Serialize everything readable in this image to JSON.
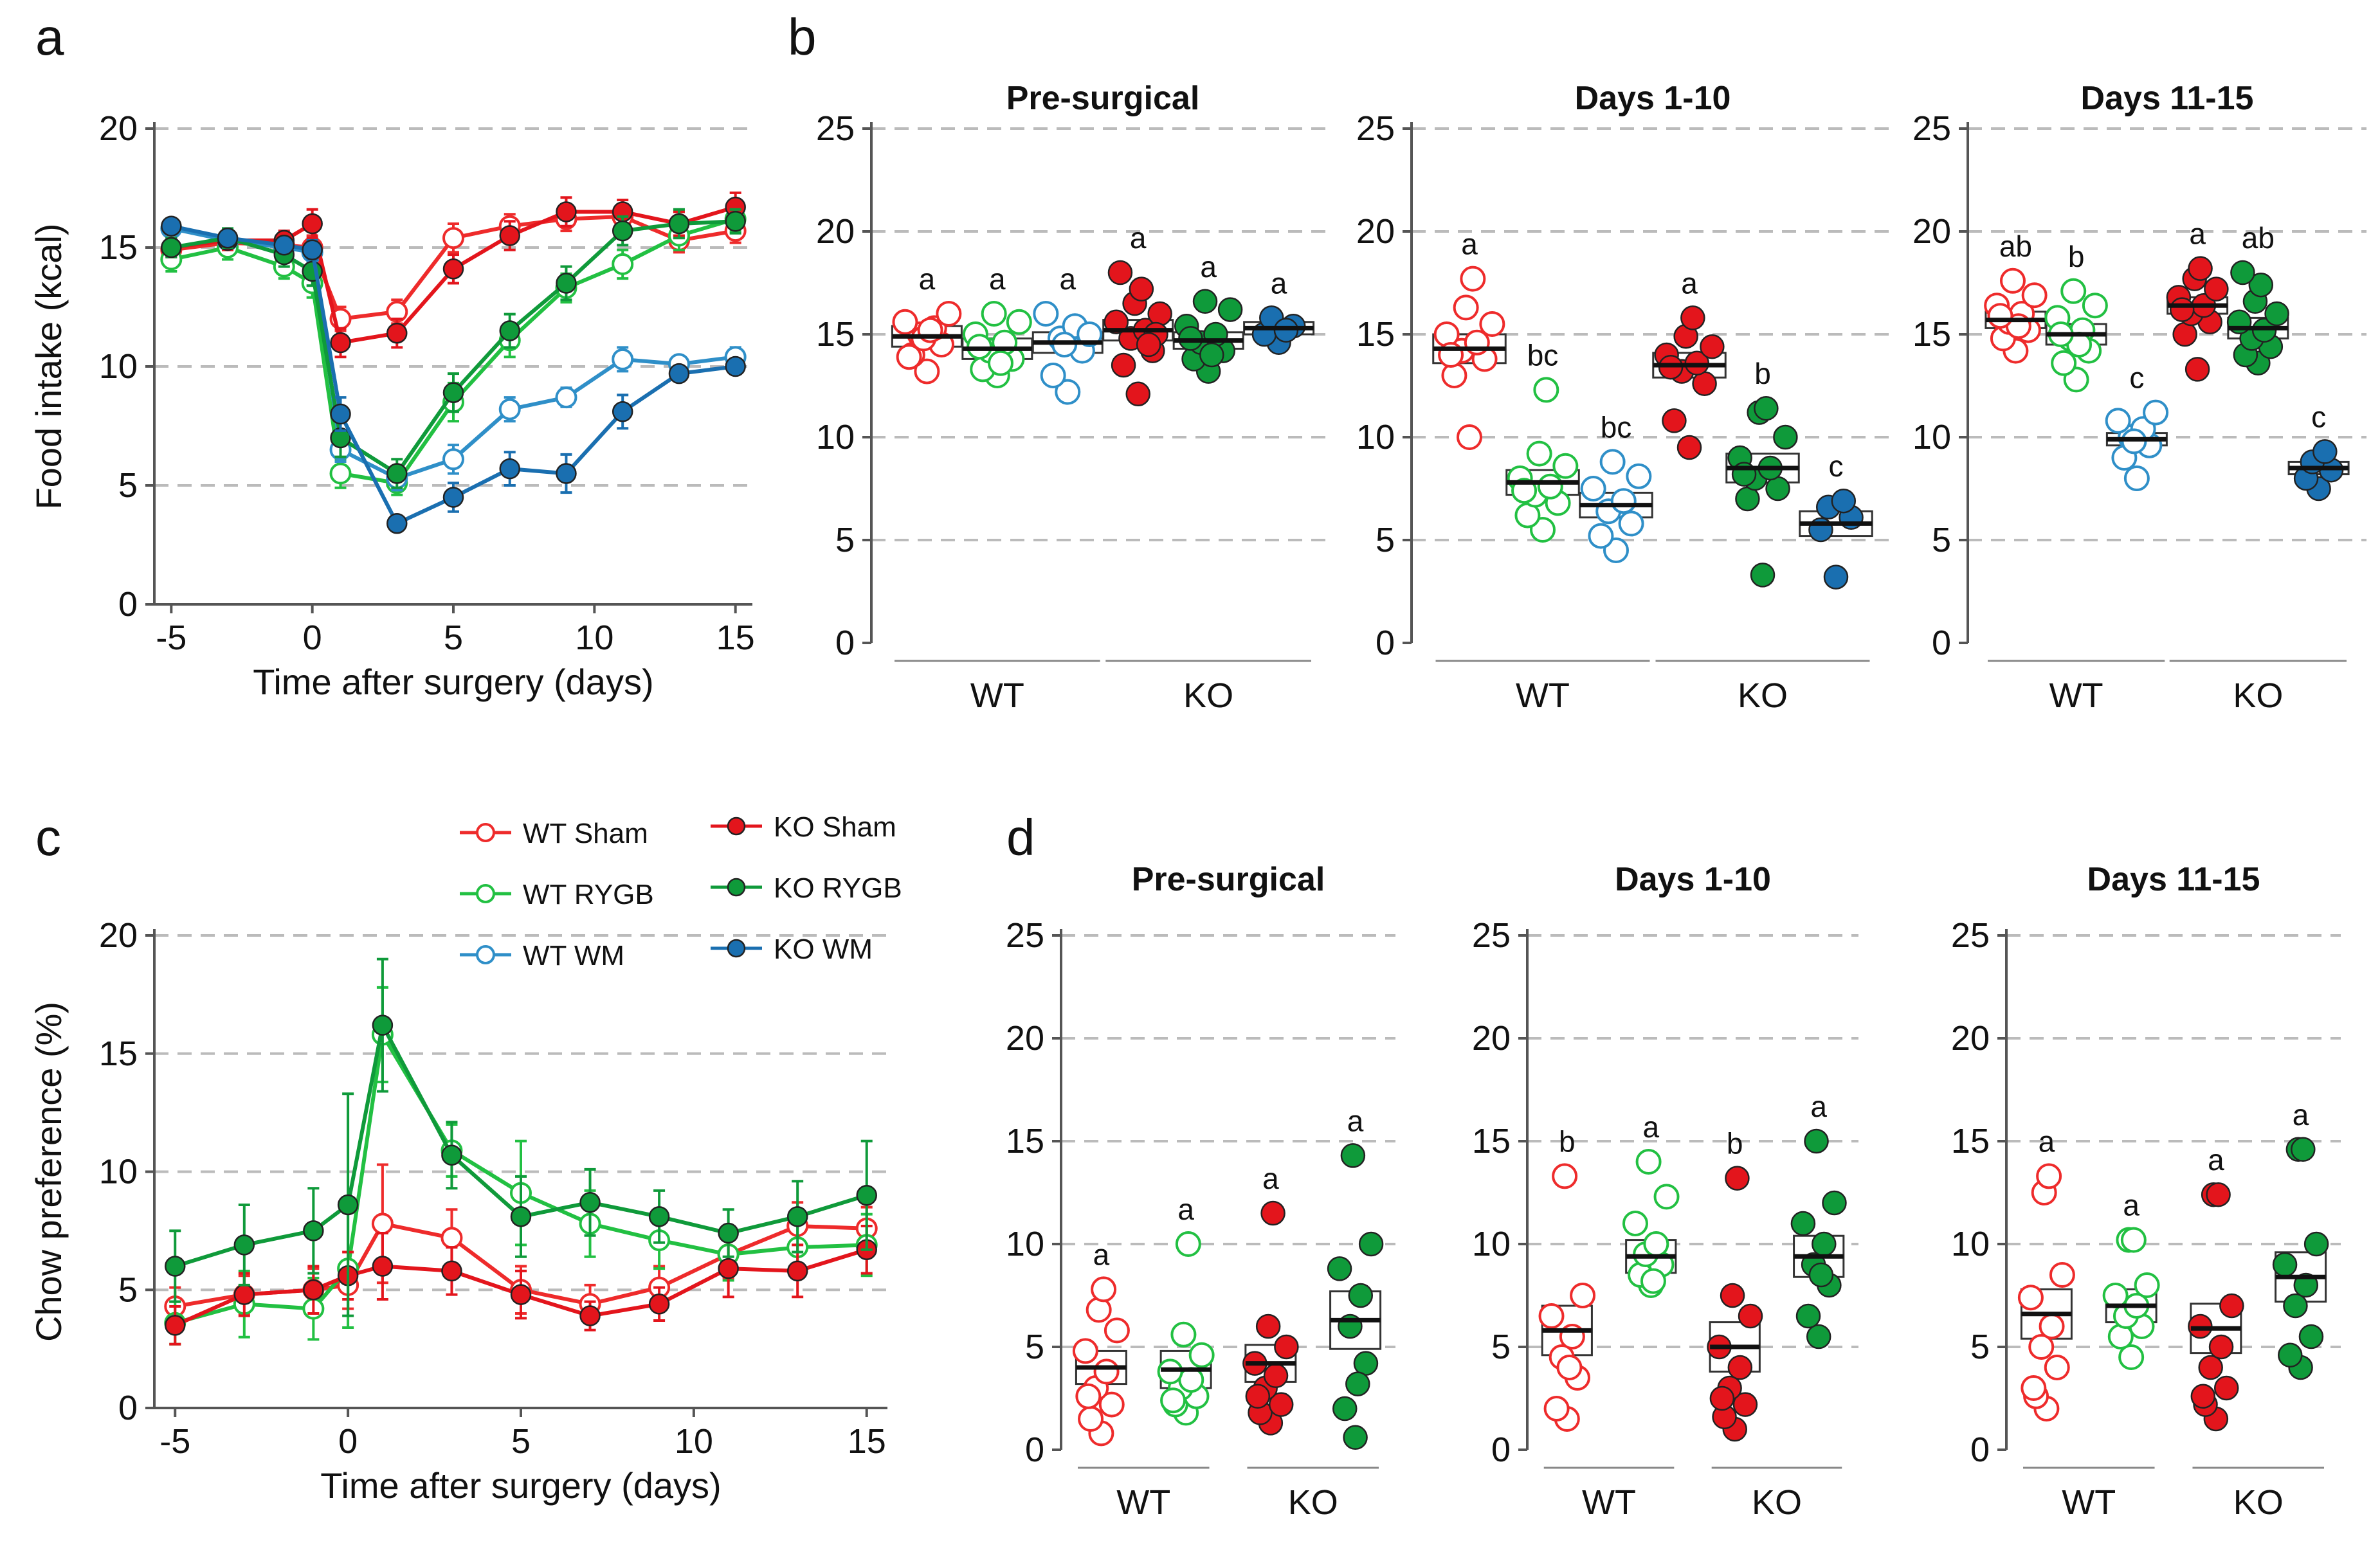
{
  "colors": {
    "wt_sham": "#ee2b2b",
    "ko_sham": "#e3151c",
    "wt_rygb": "#22c042",
    "ko_rygb": "#0f9a3a",
    "wt_wm": "#2f8fc8",
    "ko_wm": "#1a6fb0",
    "gridline": "#bbbbbb",
    "axis": "#555555"
  },
  "legend": {
    "wt_sham": "WT Sham",
    "wt_rygb": "WT RYGB",
    "wt_wm": "WT WM",
    "ko_sham": "KO Sham",
    "ko_rygb": "KO RYGB",
    "ko_wm": "KO WM"
  },
  "chart_data": [
    {
      "id": "a",
      "panel_label": "a",
      "type": "line",
      "xlabel": "Time after surgery (days)",
      "ylabel": "Food intake (kcal)",
      "xlim": [
        -5.6,
        15.6
      ],
      "ylim": [
        0,
        20
      ],
      "yticks": [
        0,
        5,
        10,
        15,
        20
      ],
      "xticks": [
        -5,
        0,
        5,
        10,
        15
      ],
      "x": [
        -5,
        -3,
        -1,
        0,
        1,
        3,
        5,
        7,
        9,
        11,
        13,
        15
      ],
      "series": [
        {
          "name": "WT Sham",
          "key": "wt_sham",
          "filled": false,
          "values": [
            14.9,
            15.2,
            15.1,
            15.0,
            12.0,
            12.3,
            15.4,
            15.9,
            16.2,
            16.3,
            15.3,
            15.7
          ],
          "err": [
            0.4,
            0.4,
            0.4,
            0.5,
            0.5,
            0.5,
            0.6,
            0.5,
            0.5,
            0.5,
            0.5,
            0.5
          ]
        },
        {
          "name": "WT RYGB",
          "key": "wt_rygb",
          "filled": false,
          "values": [
            14.5,
            15.0,
            14.2,
            13.5,
            5.5,
            5.1,
            8.5,
            11.1,
            13.3,
            14.3,
            15.5,
            16.2
          ],
          "err": [
            0.5,
            0.5,
            0.5,
            0.6,
            0.6,
            0.5,
            0.8,
            0.7,
            0.6,
            0.6,
            0.6,
            0.5
          ]
        },
        {
          "name": "WT WM",
          "key": "wt_wm",
          "filled": false,
          "values": [
            15.8,
            15.3,
            15.0,
            14.8,
            6.5,
            5.3,
            6.1,
            8.2,
            8.7,
            10.3,
            10.1,
            10.4
          ],
          "err": [
            0.3,
            0.3,
            0.3,
            0.4,
            0.5,
            0.5,
            0.6,
            0.5,
            0.4,
            0.5,
            0.3,
            0.4
          ]
        },
        {
          "name": "KO Sham",
          "key": "ko_sham",
          "filled": true,
          "values": [
            15.0,
            15.3,
            15.3,
            16.0,
            11.0,
            11.4,
            14.1,
            15.5,
            16.5,
            16.5,
            16.0,
            16.7
          ],
          "err": [
            0.4,
            0.4,
            0.4,
            0.6,
            0.6,
            0.6,
            0.6,
            0.6,
            0.6,
            0.5,
            0.5,
            0.6
          ]
        },
        {
          "name": "KO RYGB",
          "key": "ko_rygb",
          "filled": true,
          "values": [
            15.0,
            15.4,
            14.7,
            14.0,
            7.0,
            5.5,
            8.9,
            11.5,
            13.5,
            15.7,
            16.0,
            16.1
          ],
          "err": [
            0.4,
            0.4,
            0.5,
            0.6,
            0.8,
            0.6,
            0.8,
            0.7,
            0.7,
            0.6,
            0.6,
            0.5
          ]
        },
        {
          "name": "KO WM",
          "key": "ko_wm",
          "filled": true,
          "values": [
            15.9,
            15.4,
            15.1,
            14.9,
            8.0,
            3.4,
            4.5,
            5.7,
            5.5,
            8.1,
            9.7,
            10.0
          ],
          "err": [
            0.3,
            0.3,
            0.3,
            0.4,
            0.7,
            0.3,
            0.6,
            0.7,
            0.8,
            0.7,
            0.3,
            0.3
          ]
        }
      ]
    },
    {
      "id": "b1",
      "panel_label": "b",
      "type": "scatter",
      "title": "Pre-surgical",
      "ylim": [
        0,
        25
      ],
      "yticks": [
        0,
        5,
        10,
        15,
        20,
        25
      ],
      "group_labels": [
        "WT",
        "KO"
      ],
      "groups": [
        {
          "key": "wt_sham",
          "filled": false,
          "mean": 14.9,
          "sem": 0.5,
          "letter": "a",
          "values": [
            13.2,
            14.0,
            14.5,
            15.0,
            15.3,
            15.6,
            16.0,
            14.8,
            15.2,
            13.9
          ]
        },
        {
          "key": "wt_rygb",
          "filled": false,
          "mean": 14.3,
          "sem": 0.5,
          "letter": "a",
          "values": [
            13.0,
            13.3,
            13.8,
            14.2,
            14.6,
            15.0,
            15.6,
            16.0,
            13.6,
            14.4
          ]
        },
        {
          "key": "wt_wm",
          "filled": false,
          "mean": 14.6,
          "sem": 0.5,
          "letter": "a",
          "values": [
            12.2,
            13.0,
            14.2,
            14.8,
            15.4,
            16.0,
            15.0,
            14.5
          ]
        },
        {
          "key": "ko_sham",
          "filled": true,
          "mean": 15.2,
          "sem": 0.5,
          "letter": "a",
          "values": [
            12.1,
            13.5,
            14.2,
            14.8,
            15.2,
            15.6,
            16.0,
            16.5,
            17.2,
            18.0,
            15.0,
            14.5
          ]
        },
        {
          "key": "ko_rygb",
          "filled": true,
          "mean": 14.7,
          "sem": 0.4,
          "letter": "a",
          "values": [
            13.2,
            13.8,
            14.2,
            14.6,
            15.0,
            15.4,
            16.2,
            16.6,
            14.0,
            14.8
          ]
        },
        {
          "key": "ko_wm",
          "filled": true,
          "mean": 15.3,
          "sem": 0.3,
          "letter": "a",
          "values": [
            14.6,
            15.0,
            15.4,
            15.8,
            15.2
          ]
        }
      ]
    },
    {
      "id": "b2",
      "panel_label": "",
      "type": "scatter",
      "title": "Days 1-10",
      "ylim": [
        0,
        25
      ],
      "yticks": [
        0,
        5,
        10,
        15,
        20,
        25
      ],
      "group_labels": [
        "WT",
        "KO"
      ],
      "groups": [
        {
          "key": "wt_sham",
          "filled": false,
          "mean": 14.3,
          "sem": 0.7,
          "letter": "a",
          "values": [
            10.0,
            13.0,
            13.8,
            14.2,
            14.6,
            15.0,
            15.5,
            16.3,
            17.7,
            14.0
          ]
        },
        {
          "key": "wt_rygb",
          "filled": false,
          "mean": 7.8,
          "sem": 0.6,
          "letter": "bc",
          "values": [
            5.5,
            6.2,
            6.8,
            7.2,
            7.6,
            8.0,
            8.6,
            9.2,
            12.3,
            7.4
          ]
        },
        {
          "key": "wt_wm",
          "filled": false,
          "mean": 6.7,
          "sem": 0.6,
          "letter": "bc",
          "values": [
            4.5,
            5.2,
            5.8,
            6.4,
            6.9,
            7.5,
            8.1,
            8.8
          ]
        },
        {
          "key": "ko_sham",
          "filled": true,
          "mean": 13.5,
          "sem": 0.6,
          "letter": "a",
          "values": [
            9.5,
            10.8,
            12.6,
            13.2,
            13.6,
            14.0,
            14.4,
            14.9,
            15.8,
            13.4
          ]
        },
        {
          "key": "ko_rygb",
          "filled": true,
          "mean": 8.5,
          "sem": 0.7,
          "letter": "b",
          "values": [
            3.3,
            7.0,
            7.5,
            8.0,
            8.5,
            9.0,
            10.0,
            11.2,
            11.4,
            8.2
          ]
        },
        {
          "key": "ko_wm",
          "filled": true,
          "mean": 5.8,
          "sem": 0.6,
          "letter": "c",
          "values": [
            3.2,
            5.5,
            6.1,
            6.6,
            6.9
          ]
        }
      ]
    },
    {
      "id": "b3",
      "panel_label": "",
      "type": "scatter",
      "title": "Days 11-15",
      "ylim": [
        0,
        25
      ],
      "yticks": [
        0,
        5,
        10,
        15,
        20,
        25
      ],
      "group_labels": [
        "WT",
        "KO"
      ],
      "groups": [
        {
          "key": "wt_sham",
          "filled": false,
          "mean": 15.7,
          "sem": 0.4,
          "letter": "ab",
          "values": [
            14.2,
            14.8,
            15.2,
            15.6,
            16.0,
            16.4,
            16.9,
            17.6,
            15.4,
            15.9
          ]
        },
        {
          "key": "wt_rygb",
          "filled": false,
          "mean": 15.0,
          "sem": 0.5,
          "letter": "b",
          "values": [
            12.8,
            13.6,
            14.2,
            14.8,
            15.2,
            15.8,
            16.4,
            17.1,
            14.5,
            15.0
          ]
        },
        {
          "key": "wt_wm",
          "filled": false,
          "mean": 9.9,
          "sem": 0.3,
          "letter": "c",
          "values": [
            8.0,
            9.0,
            9.6,
            10.0,
            10.4,
            10.8,
            11.2,
            9.8
          ]
        },
        {
          "key": "ko_sham",
          "filled": true,
          "mean": 16.4,
          "sem": 0.4,
          "letter": "a",
          "values": [
            13.3,
            15.0,
            15.6,
            16.0,
            16.4,
            16.8,
            17.2,
            17.7,
            18.2,
            16.2
          ]
        },
        {
          "key": "ko_rygb",
          "filled": true,
          "mean": 15.3,
          "sem": 0.5,
          "letter": "ab",
          "values": [
            13.6,
            14.0,
            14.4,
            14.8,
            15.2,
            15.6,
            16.0,
            16.6,
            17.4,
            18.0
          ]
        },
        {
          "key": "ko_wm",
          "filled": true,
          "mean": 8.5,
          "sem": 0.3,
          "letter": "c",
          "values": [
            7.5,
            8.0,
            8.4,
            8.8,
            9.3
          ]
        }
      ]
    },
    {
      "id": "c",
      "panel_label": "c",
      "type": "line",
      "xlabel": "Time after surgery (days)",
      "ylabel": "Chow preference (%)",
      "xlim": [
        -5.6,
        15.6
      ],
      "ylim": [
        0,
        20
      ],
      "yticks": [
        0,
        5,
        10,
        15,
        20
      ],
      "xticks": [
        -5,
        0,
        5,
        10,
        15
      ],
      "x": [
        -5,
        -3,
        -1,
        0,
        1,
        3,
        5,
        7,
        9,
        11,
        13,
        15
      ],
      "series": [
        {
          "name": "WT Sham",
          "key": "wt_sham",
          "filled": false,
          "values": [
            4.3,
            4.8,
            5.0,
            5.2,
            7.8,
            7.2,
            5.0,
            4.4,
            5.1,
            6.5,
            7.7,
            7.6
          ],
          "err": [
            0.8,
            0.8,
            0.9,
            1.0,
            2.5,
            1.2,
            1.0,
            0.8,
            0.9,
            1.0,
            1.0,
            0.9
          ]
        },
        {
          "name": "WT RYGB",
          "key": "wt_rygb",
          "filled": false,
          "values": [
            3.6,
            4.4,
            4.2,
            5.9,
            15.8,
            10.9,
            9.1,
            7.8,
            7.1,
            6.5,
            6.8,
            6.9
          ],
          "err": [
            0.9,
            1.4,
            1.3,
            2.5,
            2.0,
            1.1,
            2.2,
            1.4,
            1.2,
            1.1,
            1.1,
            1.3
          ]
        },
        {
          "name": "KO Sham",
          "key": "ko_sham",
          "filled": true,
          "values": [
            3.5,
            4.8,
            5.0,
            5.6,
            6.0,
            5.8,
            4.8,
            3.9,
            4.4,
            5.9,
            5.8,
            6.7
          ],
          "err": [
            0.8,
            0.9,
            1.0,
            1.0,
            1.4,
            1.0,
            1.0,
            0.6,
            0.7,
            1.2,
            1.1,
            1.0
          ]
        },
        {
          "name": "KO RYGB",
          "key": "ko_rygb",
          "filled": true,
          "values": [
            6.0,
            6.9,
            7.5,
            8.6,
            16.2,
            10.7,
            8.1,
            8.7,
            8.1,
            7.4,
            8.1,
            9.0
          ],
          "err": [
            1.5,
            1.7,
            1.8,
            4.7,
            2.8,
            1.4,
            1.7,
            1.4,
            1.1,
            1.0,
            1.5,
            2.3
          ]
        }
      ]
    },
    {
      "id": "d1",
      "panel_label": "d",
      "type": "scatter",
      "title": "Pre-surgical",
      "ylim": [
        0,
        25
      ],
      "yticks": [
        0,
        5,
        10,
        15,
        20,
        25
      ],
      "group_labels": [
        "WT",
        "KO"
      ],
      "groups": [
        {
          "key": "wt_sham",
          "filled": false,
          "mean": 4.0,
          "sem": 0.8,
          "letter": "a",
          "values": [
            0.8,
            1.5,
            2.2,
            3.0,
            3.8,
            4.8,
            5.8,
            6.8,
            7.8,
            2.6
          ]
        },
        {
          "key": "wt_rygb",
          "filled": false,
          "mean": 3.9,
          "sem": 0.9,
          "letter": "a",
          "values": [
            1.8,
            2.2,
            2.6,
            3.0,
            3.4,
            3.8,
            4.6,
            5.6,
            10.0,
            2.4
          ]
        },
        {
          "key": "ko_sham",
          "filled": true,
          "mean": 4.2,
          "sem": 0.9,
          "letter": "a",
          "values": [
            1.3,
            1.8,
            2.2,
            3.0,
            3.6,
            4.2,
            5.0,
            6.0,
            11.5,
            2.6
          ]
        },
        {
          "key": "ko_rygb",
          "filled": true,
          "mean": 6.3,
          "sem": 1.4,
          "letter": "a",
          "values": [
            0.6,
            2.0,
            4.2,
            6.0,
            7.5,
            8.8,
            10.0,
            14.3,
            3.2
          ]
        }
      ]
    },
    {
      "id": "d2",
      "panel_label": "",
      "type": "scatter",
      "title": "Days 1-10",
      "ylim": [
        0,
        25
      ],
      "yticks": [
        0,
        5,
        10,
        15,
        20,
        25
      ],
      "group_labels": [
        "WT",
        "KO"
      ],
      "groups": [
        {
          "key": "wt_sham",
          "filled": false,
          "mean": 5.8,
          "sem": 1.2,
          "letter": "b",
          "values": [
            1.5,
            2.0,
            3.5,
            4.5,
            5.5,
            6.5,
            7.5,
            13.3,
            4.0
          ]
        },
        {
          "key": "wt_rygb",
          "filled": false,
          "mean": 9.4,
          "sem": 0.8,
          "letter": "a",
          "values": [
            8.0,
            8.5,
            9.0,
            9.5,
            10.0,
            11.0,
            12.3,
            14.0,
            8.2
          ]
        },
        {
          "key": "ko_sham",
          "filled": true,
          "mean": 5.0,
          "sem": 1.2,
          "letter": "b",
          "values": [
            1.0,
            1.6,
            2.2,
            3.0,
            4.0,
            5.0,
            6.5,
            7.5,
            13.2,
            2.5
          ]
        },
        {
          "key": "ko_rygb",
          "filled": true,
          "mean": 9.4,
          "sem": 1.0,
          "letter": "a",
          "values": [
            5.5,
            6.5,
            8.0,
            9.0,
            10.0,
            11.0,
            12.0,
            15.0,
            8.5
          ]
        }
      ]
    },
    {
      "id": "d3",
      "panel_label": "",
      "type": "scatter",
      "title": "Days 11-15",
      "ylim": [
        0,
        25
      ],
      "yticks": [
        0,
        5,
        10,
        15,
        20,
        25
      ],
      "group_labels": [
        "WT",
        "KO"
      ],
      "groups": [
        {
          "key": "wt_sham",
          "filled": false,
          "mean": 6.6,
          "sem": 1.2,
          "letter": "a",
          "values": [
            2.0,
            2.6,
            4.0,
            5.0,
            6.0,
            7.4,
            8.5,
            12.5,
            13.3,
            3.0
          ]
        },
        {
          "key": "wt_rygb",
          "filled": false,
          "mean": 7.0,
          "sem": 0.8,
          "letter": "a",
          "values": [
            4.5,
            5.5,
            6.0,
            6.5,
            7.0,
            7.5,
            8.0,
            10.2,
            10.2
          ]
        },
        {
          "key": "ko_sham",
          "filled": true,
          "mean": 5.9,
          "sem": 1.2,
          "letter": "a",
          "values": [
            1.5,
            2.2,
            3.0,
            4.0,
            5.0,
            6.0,
            7.0,
            12.4,
            12.4,
            2.6
          ]
        },
        {
          "key": "ko_rygb",
          "filled": true,
          "mean": 8.4,
          "sem": 1.2,
          "letter": "a",
          "values": [
            4.0,
            4.6,
            5.5,
            7.0,
            8.0,
            9.0,
            10.0,
            14.6,
            14.6
          ]
        }
      ]
    }
  ]
}
